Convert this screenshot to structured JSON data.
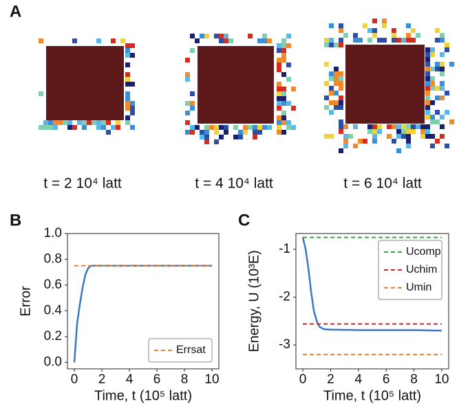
{
  "panel_a": {
    "label": "A",
    "captions": [
      "t = 2 10⁴  latt",
      "t = 4 10⁴  latt",
      "t = 6 10⁴  latt"
    ]
  },
  "chart_data": [
    {
      "type": "line",
      "panel": "B",
      "xlabel": "Time, t (10⁵ latt)",
      "ylabel": "Error",
      "xlim": [
        -0.5,
        10.5
      ],
      "ylim": [
        -0.05,
        1.0
      ],
      "xticks": [
        0,
        2,
        4,
        6,
        8,
        10
      ],
      "yticks": [
        {
          "value": 0,
          "label": "0.0"
        },
        0.2,
        0.4,
        0.6,
        0.8,
        {
          "value": 1,
          "label": "1.0"
        }
      ],
      "legend": "lower right",
      "series": [
        {
          "name": null,
          "color": "#3a78c0",
          "dash": false,
          "x": [
            0,
            0.2,
            0.4,
            0.6,
            0.8,
            1.0,
            1.2,
            2,
            4,
            6,
            8,
            10
          ],
          "values": [
            0,
            0.3,
            0.45,
            0.58,
            0.68,
            0.73,
            0.75,
            0.75,
            0.75,
            0.75,
            0.75,
            0.75
          ]
        },
        {
          "name": "Errsat",
          "color": "#e8822a",
          "dash": true,
          "x": [
            0,
            10
          ],
          "values": [
            0.75,
            0.75
          ]
        }
      ]
    },
    {
      "type": "line",
      "panel": "C",
      "xlabel": "Time, t (10⁵ latt)",
      "ylabel": "Energy, U (10³E)",
      "xlim": [
        -0.5,
        10.5
      ],
      "ylim": [
        -3.5,
        -0.67
      ],
      "xticks": [
        0,
        2,
        4,
        6,
        8,
        10
      ],
      "yticks": [
        -3,
        -2,
        -1
      ],
      "legend": "upper right",
      "series": [
        {
          "name": null,
          "color": "#3a78c0",
          "dash": false,
          "x": [
            0,
            0.2,
            0.4,
            0.6,
            0.8,
            1.0,
            1.2,
            1.5,
            2,
            4,
            6,
            8,
            10
          ],
          "values": [
            -0.75,
            -1.0,
            -1.4,
            -1.9,
            -2.3,
            -2.5,
            -2.62,
            -2.67,
            -2.68,
            -2.69,
            -2.69,
            -2.69,
            -2.7
          ]
        },
        {
          "name": "Ucomp",
          "color": "#3aa23a",
          "dash": true,
          "x": [
            0,
            10
          ],
          "values": [
            -0.75,
            -0.75
          ]
        },
        {
          "name": "Uchim",
          "color": "#c0282d",
          "dash": true,
          "x": [
            0,
            10
          ],
          "values": [
            -2.56,
            -2.56
          ]
        },
        {
          "name": "Umin",
          "color": "#e8822a",
          "dash": true,
          "x": [
            0,
            10
          ],
          "values": [
            -3.2,
            -3.2
          ]
        }
      ]
    }
  ]
}
